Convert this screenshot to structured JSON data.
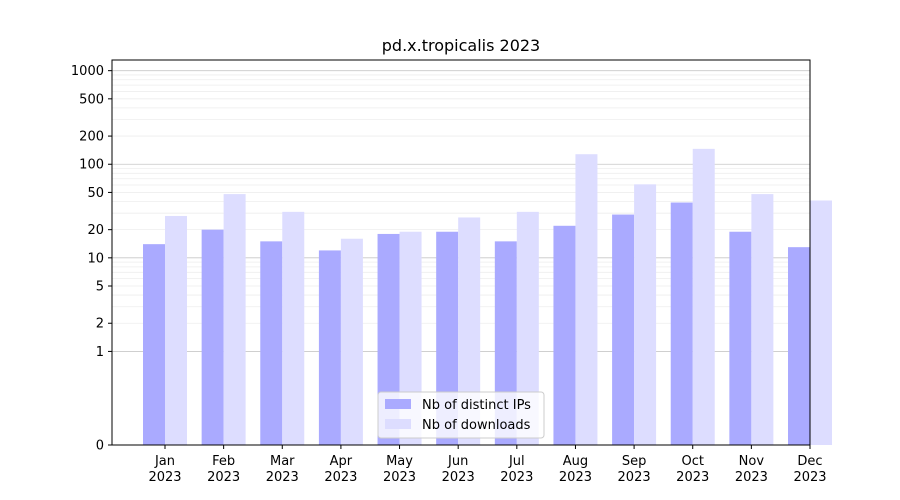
{
  "chart_data": {
    "type": "bar",
    "title": "pd.x.tropicalis 2023",
    "xlabel": "",
    "ylabel": "",
    "y_scale": "symlog",
    "ylim": [
      0,
      1300
    ],
    "y_ticks": [
      0,
      1,
      2,
      5,
      10,
      20,
      50,
      100,
      200,
      500,
      1000
    ],
    "categories": [
      "Jan\n2023",
      "Feb\n2023",
      "Mar\n2023",
      "Apr\n2023",
      "May\n2023",
      "Jun\n2023",
      "Jul\n2023",
      "Aug\n2023",
      "Sep\n2023",
      "Oct\n2023",
      "Nov\n2023",
      "Dec\n2023"
    ],
    "series": [
      {
        "name": "Nb of distinct IPs",
        "color": "#aaaaff",
        "values": [
          14,
          20,
          15,
          12,
          18,
          19,
          15,
          22,
          29,
          39,
          19,
          13
        ]
      },
      {
        "name": "Nb of downloads",
        "color": "#ddddff",
        "values": [
          28,
          48,
          31,
          16,
          19,
          27,
          31,
          128,
          61,
          146,
          48,
          41
        ]
      }
    ],
    "grid": true,
    "legend_position": "bottom-center"
  }
}
